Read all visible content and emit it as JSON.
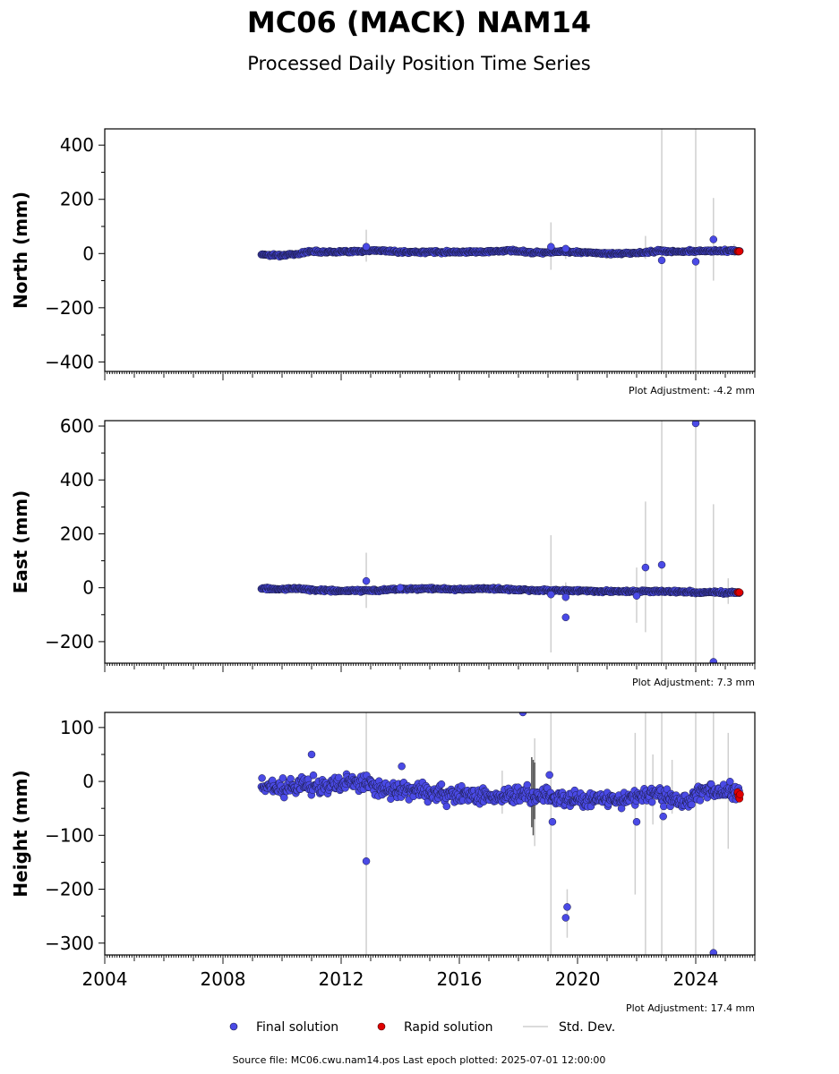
{
  "title": "MC06 (MACK) NAM14",
  "subtitle": "Processed Daily Position Time Series",
  "legend": {
    "final_label": "Final solution",
    "rapid_label": "Rapid solution",
    "std_label": "Std. Dev.",
    "placement": "bottom-center"
  },
  "source": "Source file: MC06.cwu.nam14.pos  Last epoch plotted: 2025-07-01 12:00:00",
  "colors": {
    "final": "#4a4ae6",
    "final_edge": "#1a1a40",
    "rapid": "#e00000",
    "std_dev": "#cfcfcf",
    "std_dev_dark": "#555555"
  },
  "chart_data": [
    {
      "type": "scatter",
      "ylabel": "North (mm)",
      "adjustment": "Plot Adjustment: -4.2 mm",
      "xlim": [
        2004,
        2026
      ],
      "ylim": [
        -435,
        460
      ],
      "yticks": [
        400,
        200,
        0,
        -200,
        -400
      ],
      "ytick_labels": [
        "400",
        "200",
        "0",
        "−200",
        "−400"
      ],
      "ytick_minor_step": 100,
      "show_xtick_labels": false,
      "trend": [
        [
          2009.3,
          -2
        ],
        [
          2009.6,
          -6
        ],
        [
          2010.2,
          -5
        ],
        [
          2010.6,
          0
        ],
        [
          2011.0,
          9
        ],
        [
          2011.5,
          6
        ],
        [
          2012.5,
          8
        ],
        [
          2013.3,
          12
        ],
        [
          2014.0,
          5
        ],
        [
          2015.0,
          6
        ],
        [
          2016.0,
          6
        ],
        [
          2017.0,
          7
        ],
        [
          2017.7,
          11
        ],
        [
          2018.5,
          4
        ],
        [
          2019.5,
          7
        ],
        [
          2020.5,
          3
        ],
        [
          2021.0,
          -1
        ],
        [
          2022.0,
          2
        ],
        [
          2022.8,
          10
        ],
        [
          2023.5,
          6
        ],
        [
          2024.3,
          10
        ],
        [
          2025.5,
          10
        ]
      ],
      "noise": 3,
      "outliers": [
        [
          2012.85,
          25
        ],
        [
          2019.1,
          25
        ],
        [
          2019.6,
          18
        ],
        [
          2022.85,
          -25
        ],
        [
          2024.0,
          -30
        ],
        [
          2024.6,
          52
        ]
      ],
      "std_bars": [
        [
          2012.85,
          -30,
          88
        ],
        [
          2019.1,
          -60,
          115
        ],
        [
          2019.6,
          -20,
          30
        ],
        [
          2022.3,
          -20,
          65
        ],
        [
          2022.85,
          -435,
          460
        ],
        [
          2024.0,
          -435,
          460
        ],
        [
          2024.6,
          -100,
          205
        ],
        [
          2025.3,
          -10,
          35
        ]
      ],
      "dark_bars": [],
      "rapid": [
        [
          2025.42,
          8
        ],
        [
          2025.45,
          7
        ],
        [
          2025.48,
          8
        ]
      ]
    },
    {
      "type": "scatter",
      "ylabel": "East (mm)",
      "adjustment": "Plot Adjustment: 7.3 mm",
      "xlim": [
        2004,
        2026
      ],
      "ylim": [
        -280,
        620
      ],
      "yticks": [
        600,
        400,
        200,
        0,
        -200
      ],
      "ytick_labels": [
        "600",
        "400",
        "200",
        "0",
        "−200"
      ],
      "ytick_minor_step": 100,
      "show_xtick_labels": false,
      "trend": [
        [
          2009.3,
          -3
        ],
        [
          2010.0,
          -5
        ],
        [
          2010.5,
          -3
        ],
        [
          2011.0,
          -8
        ],
        [
          2012.0,
          -12
        ],
        [
          2013.0,
          -10
        ],
        [
          2014.0,
          -5
        ],
        [
          2015.0,
          -3
        ],
        [
          2016.0,
          -6
        ],
        [
          2017.0,
          -3
        ],
        [
          2018.0,
          -8
        ],
        [
          2019.0,
          -10
        ],
        [
          2020.0,
          -11
        ],
        [
          2021.0,
          -13
        ],
        [
          2022.0,
          -14
        ],
        [
          2023.0,
          -13
        ],
        [
          2024.0,
          -17
        ],
        [
          2025.5,
          -18
        ]
      ],
      "noise": 3,
      "outliers": [
        [
          2012.85,
          25
        ],
        [
          2014.0,
          0
        ],
        [
          2019.1,
          -25
        ],
        [
          2019.6,
          -110
        ],
        [
          2019.6,
          -35
        ],
        [
          2022.3,
          75
        ],
        [
          2022.85,
          85
        ],
        [
          2022.0,
          -30
        ],
        [
          2024.0,
          610
        ],
        [
          2024.6,
          -275
        ]
      ],
      "std_bars": [
        [
          2012.85,
          -75,
          130
        ],
        [
          2019.1,
          -240,
          195
        ],
        [
          2019.6,
          -50,
          20
        ],
        [
          2022.0,
          -130,
          75
        ],
        [
          2022.3,
          -165,
          320
        ],
        [
          2022.85,
          -280,
          620
        ],
        [
          2024.0,
          -280,
          620
        ],
        [
          2024.6,
          -280,
          310
        ],
        [
          2025.1,
          -60,
          35
        ]
      ],
      "dark_bars": [],
      "rapid": [
        [
          2025.42,
          -17
        ],
        [
          2025.45,
          -18
        ],
        [
          2025.48,
          -17
        ]
      ]
    },
    {
      "type": "scatter",
      "ylabel": "Height (mm)",
      "adjustment": "Plot Adjustment: 17.4 mm",
      "xlim": [
        2004,
        2026
      ],
      "ylim": [
        -322,
        128
      ],
      "yticks": [
        100,
        0,
        -100,
        -200,
        -300
      ],
      "ytick_labels": [
        "100",
        "0",
        "−100",
        "−200",
        "−300"
      ],
      "ytick_minor_step": 50,
      "show_xtick_labels": true,
      "xticks": [
        2004,
        2008,
        2012,
        2016,
        2020,
        2024
      ],
      "xtick_labels": [
        "2004",
        "2008",
        "2012",
        "2016",
        "2020",
        "2024"
      ],
      "trend": [
        [
          2009.3,
          -8
        ],
        [
          2010.0,
          -12
        ],
        [
          2010.7,
          -6
        ],
        [
          2011.5,
          -10
        ],
        [
          2012.2,
          -4
        ],
        [
          2012.8,
          -5
        ],
        [
          2013.5,
          -14
        ],
        [
          2014.5,
          -18
        ],
        [
          2015.5,
          -24
        ],
        [
          2016.5,
          -26
        ],
        [
          2017.5,
          -28
        ],
        [
          2018.3,
          -24
        ],
        [
          2019.0,
          -30
        ],
        [
          2020.0,
          -35
        ],
        [
          2020.7,
          -33
        ],
        [
          2021.5,
          -36
        ],
        [
          2022.0,
          -28
        ],
        [
          2022.7,
          -22
        ],
        [
          2023.3,
          -35
        ],
        [
          2023.8,
          -40
        ],
        [
          2024.1,
          -12
        ],
        [
          2025.0,
          -18
        ],
        [
          2025.5,
          -20
        ]
      ],
      "noise": 11,
      "outliers": [
        [
          2011.0,
          50
        ],
        [
          2012.85,
          -148
        ],
        [
          2014.05,
          28
        ],
        [
          2018.15,
          128
        ],
        [
          2019.05,
          12
        ],
        [
          2019.15,
          -75
        ],
        [
          2019.65,
          -233
        ],
        [
          2019.6,
          -253
        ],
        [
          2022.0,
          -75
        ],
        [
          2022.9,
          -65
        ],
        [
          2024.6,
          -318
        ]
      ],
      "std_bars": [
        [
          2012.85,
          -322,
          128
        ],
        [
          2017.45,
          -60,
          20
        ],
        [
          2018.55,
          -120,
          80
        ],
        [
          2019.1,
          -322,
          128
        ],
        [
          2019.65,
          -290,
          -200
        ],
        [
          2021.95,
          -210,
          90
        ],
        [
          2022.3,
          -322,
          128
        ],
        [
          2022.55,
          -80,
          50
        ],
        [
          2022.85,
          -322,
          128
        ],
        [
          2023.2,
          -60,
          40
        ],
        [
          2024.0,
          -322,
          128
        ],
        [
          2024.6,
          -322,
          128
        ],
        [
          2025.1,
          -125,
          90
        ]
      ],
      "dark_bars": [
        [
          2018.45,
          -85,
          45
        ],
        [
          2018.5,
          -100,
          40
        ],
        [
          2018.55,
          -70,
          35
        ]
      ],
      "rapid": [
        [
          2025.42,
          -20
        ],
        [
          2025.45,
          -28
        ],
        [
          2025.48,
          -32
        ],
        [
          2025.5,
          -24
        ]
      ]
    }
  ]
}
